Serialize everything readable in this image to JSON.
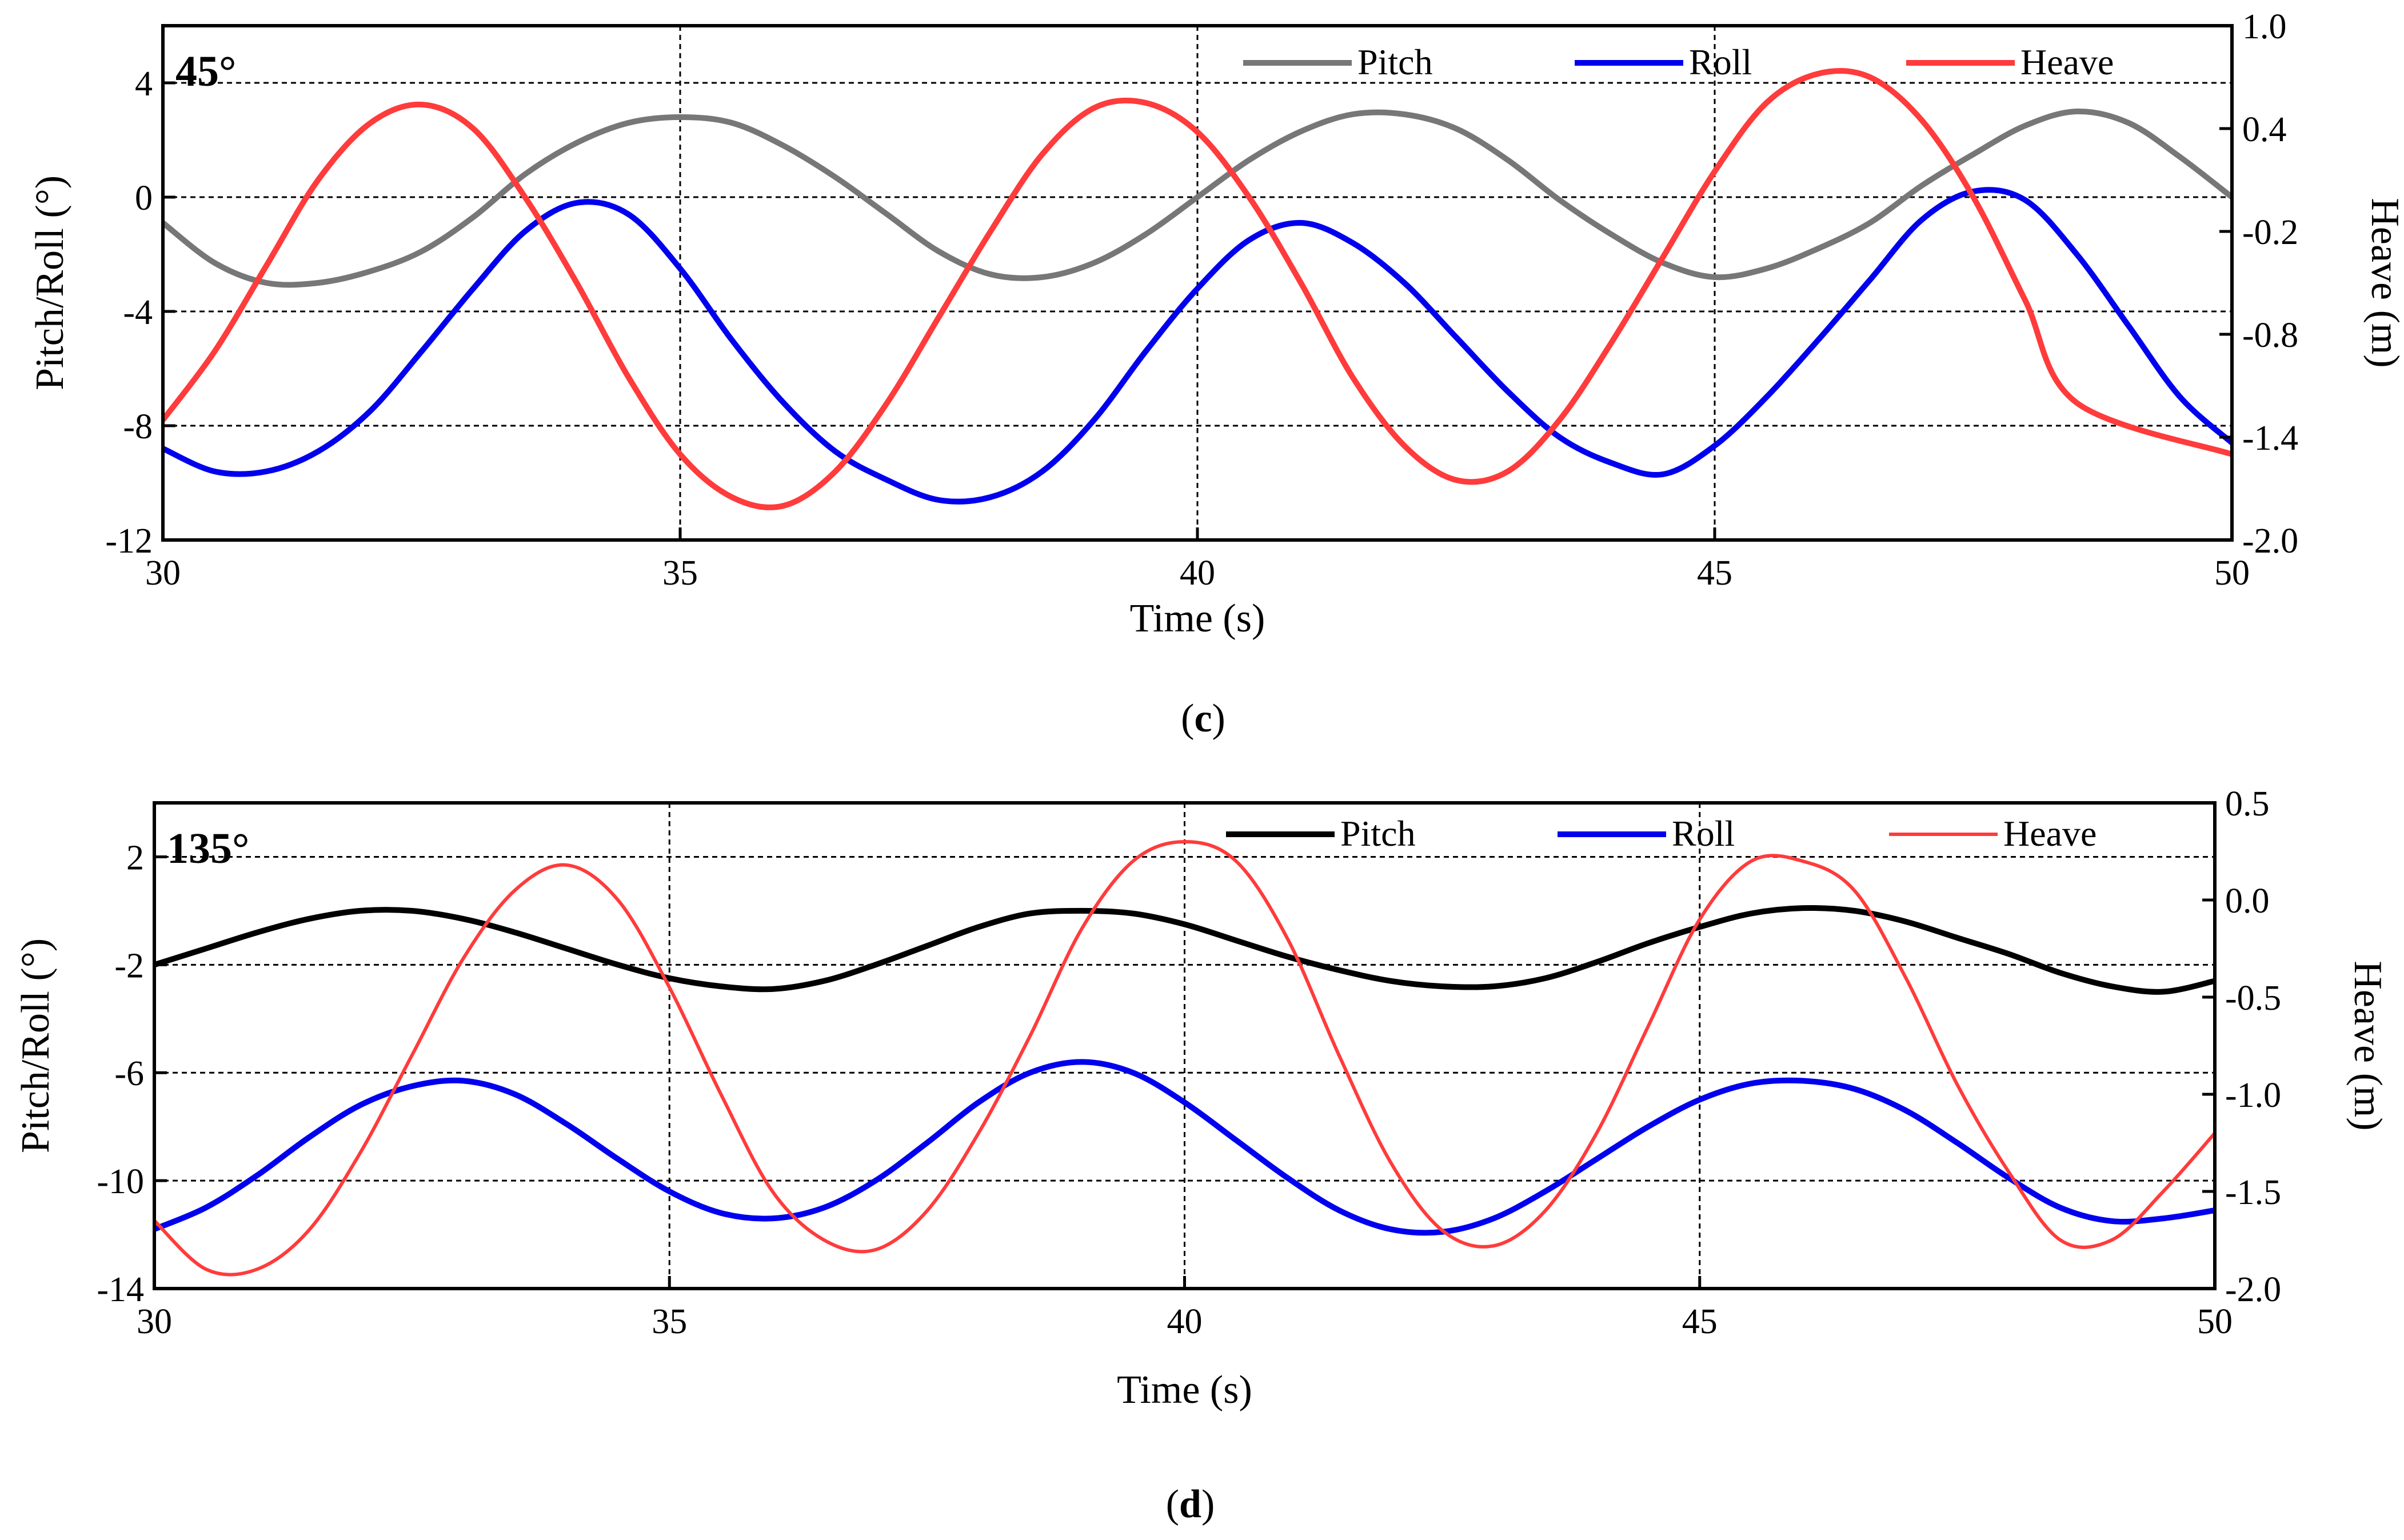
{
  "chart_data": [
    {
      "type": "line",
      "panel_title": "45°",
      "caption_letter": "c",
      "xlabel": "Time (s)",
      "ylabel_left": "Pitch/Roll (°)",
      "ylabel_right": "Heave (m)",
      "xlim": [
        30,
        50
      ],
      "xticks": [
        30,
        35,
        40,
        45,
        50
      ],
      "ylim_left": [
        -12,
        6
      ],
      "yticks_left": [
        -12,
        -8,
        -4,
        0,
        4
      ],
      "ylim_right": [
        -2.0,
        1.0
      ],
      "yticks_right": [
        "-2.0",
        "-1.4",
        "-0.8",
        "-0.2",
        "0.4",
        "1.0"
      ],
      "legend_position": "top-right",
      "series": [
        {
          "name": "Pitch",
          "axis": "left",
          "color": "#777777",
          "width": 10,
          "x": [
            30.0,
            30.5,
            31.0,
            31.5,
            32.0,
            32.5,
            33.0,
            33.5,
            34.0,
            34.5,
            35.0,
            35.5,
            36.0,
            36.5,
            37.0,
            37.5,
            38.0,
            38.5,
            39.0,
            39.5,
            40.0,
            40.5,
            41.0,
            41.5,
            42.0,
            42.5,
            43.0,
            43.5,
            44.0,
            44.5,
            45.0,
            45.5,
            46.0,
            46.5,
            47.0,
            47.5,
            48.0,
            48.5,
            49.0,
            49.5,
            50.0
          ],
          "y": [
            -0.9,
            -2.3,
            -3.0,
            -3.0,
            -2.6,
            -1.9,
            -0.7,
            0.8,
            1.9,
            2.6,
            2.8,
            2.6,
            1.8,
            0.7,
            -0.6,
            -1.9,
            -2.7,
            -2.8,
            -2.3,
            -1.3,
            0.0,
            1.3,
            2.3,
            2.9,
            2.9,
            2.4,
            1.3,
            -0.1,
            -1.3,
            -2.3,
            -2.8,
            -2.5,
            -1.8,
            -0.9,
            0.4,
            1.5,
            2.5,
            3.0,
            2.6,
            1.4,
            0.0
          ]
        },
        {
          "name": "Roll",
          "axis": "left",
          "color": "#0000ee",
          "width": 10,
          "x": [
            30.0,
            30.5,
            31.0,
            31.5,
            32.0,
            32.5,
            33.0,
            33.5,
            34.0,
            34.5,
            35.0,
            35.5,
            36.0,
            36.5,
            37.0,
            37.5,
            38.0,
            38.5,
            39.0,
            39.5,
            40.0,
            40.5,
            41.0,
            41.5,
            42.0,
            42.5,
            43.0,
            43.5,
            44.0,
            44.5,
            45.0,
            45.5,
            46.0,
            46.5,
            47.0,
            47.5,
            48.0,
            48.5,
            49.0,
            49.5,
            50.0
          ],
          "y": [
            -8.8,
            -9.6,
            -9.6,
            -8.9,
            -7.5,
            -5.4,
            -3.2,
            -1.2,
            -0.2,
            -0.6,
            -2.5,
            -5.0,
            -7.2,
            -8.9,
            -9.9,
            -10.6,
            -10.5,
            -9.6,
            -7.8,
            -5.4,
            -3.2,
            -1.5,
            -0.9,
            -1.6,
            -3.0,
            -4.9,
            -6.8,
            -8.4,
            -9.3,
            -9.7,
            -8.7,
            -7.0,
            -5.0,
            -2.9,
            -0.8,
            0.2,
            -0.1,
            -2.0,
            -4.5,
            -7.0,
            -8.6
          ]
        },
        {
          "name": "Heave",
          "axis": "right",
          "color": "#ff3b3b",
          "width": 10,
          "x": [
            30.0,
            30.5,
            31.0,
            31.5,
            32.0,
            32.5,
            33.0,
            33.5,
            34.0,
            34.5,
            35.0,
            35.5,
            36.0,
            36.5,
            37.0,
            37.5,
            38.0,
            38.5,
            39.0,
            39.5,
            40.0,
            40.5,
            41.0,
            41.5,
            42.0,
            42.5,
            43.0,
            43.5,
            44.0,
            44.5,
            45.0,
            45.5,
            46.0,
            46.5,
            47.0,
            47.5,
            48.0,
            48.5,
            50.0
          ],
          "y": [
            -1.3,
            -0.9,
            -0.4,
            0.1,
            0.43,
            0.54,
            0.4,
            0.0,
            -0.5,
            -1.05,
            -1.5,
            -1.75,
            -1.8,
            -1.6,
            -1.2,
            -0.7,
            -0.2,
            0.25,
            0.52,
            0.55,
            0.38,
            0.0,
            -0.5,
            -1.05,
            -1.45,
            -1.65,
            -1.6,
            -1.3,
            -0.85,
            -0.35,
            0.15,
            0.55,
            0.72,
            0.7,
            0.45,
            0.0,
            -0.6,
            -1.2,
            -1.5
          ]
        }
      ]
    },
    {
      "type": "line",
      "panel_title": "135°",
      "caption_letter": "d",
      "xlabel": "Time (s)",
      "ylabel_left": "Pitch/Roll (°)",
      "ylabel_right": "Heave (m)",
      "xlim": [
        30,
        50
      ],
      "xticks": [
        30,
        35,
        40,
        45,
        50
      ],
      "ylim_left": [
        -14,
        4
      ],
      "yticks_left": [
        -14,
        -10,
        -6,
        -2,
        2
      ],
      "ylim_right": [
        -2.0,
        0.5
      ],
      "yticks_right": [
        "-2.0",
        "-1.5",
        "-1.0",
        "-0.5",
        "0.0",
        "0.5"
      ],
      "legend_position": "top-right",
      "series": [
        {
          "name": "Pitch",
          "axis": "left",
          "color": "#000000",
          "width": 10,
          "x": [
            30.0,
            30.5,
            31.0,
            31.5,
            32.0,
            32.5,
            33.0,
            33.5,
            34.0,
            34.5,
            35.0,
            35.5,
            36.0,
            36.5,
            37.0,
            37.5,
            38.0,
            38.5,
            39.0,
            39.5,
            40.0,
            40.5,
            41.0,
            41.5,
            42.0,
            42.5,
            43.0,
            43.5,
            44.0,
            44.5,
            45.0,
            45.5,
            46.0,
            46.5,
            47.0,
            47.5,
            48.0,
            48.5,
            49.0,
            49.5,
            50.0
          ],
          "y": [
            -2.0,
            -1.4,
            -0.8,
            -0.3,
            0.0,
            0.0,
            -0.3,
            -0.8,
            -1.4,
            -2.0,
            -2.5,
            -2.8,
            -2.9,
            -2.6,
            -2.0,
            -1.3,
            -0.6,
            -0.1,
            0.0,
            -0.1,
            -0.5,
            -1.1,
            -1.7,
            -2.2,
            -2.6,
            -2.8,
            -2.8,
            -2.5,
            -1.9,
            -1.2,
            -0.6,
            -0.1,
            0.1,
            0.0,
            -0.4,
            -1.0,
            -1.6,
            -2.3,
            -2.8,
            -3.0,
            -2.6
          ]
        },
        {
          "name": "Roll",
          "axis": "left",
          "color": "#0000ee",
          "width": 10,
          "x": [
            30.0,
            30.5,
            31.0,
            31.5,
            32.0,
            32.5,
            33.0,
            33.5,
            34.0,
            34.5,
            35.0,
            35.5,
            36.0,
            36.5,
            37.0,
            37.5,
            38.0,
            38.5,
            39.0,
            39.5,
            40.0,
            40.5,
            41.0,
            41.5,
            42.0,
            42.5,
            43.0,
            43.5,
            44.0,
            44.5,
            45.0,
            45.5,
            46.0,
            46.5,
            47.0,
            47.5,
            48.0,
            48.5,
            49.0,
            49.5,
            50.0
          ],
          "y": [
            -11.8,
            -11.0,
            -9.8,
            -8.4,
            -7.2,
            -6.5,
            -6.3,
            -6.8,
            -7.9,
            -9.2,
            -10.4,
            -11.2,
            -11.4,
            -11.0,
            -10.0,
            -8.6,
            -7.1,
            -6.0,
            -5.6,
            -6.0,
            -7.1,
            -8.5,
            -9.9,
            -11.1,
            -11.8,
            -11.9,
            -11.4,
            -10.4,
            -9.2,
            -8.0,
            -7.0,
            -6.4,
            -6.3,
            -6.6,
            -7.4,
            -8.6,
            -9.9,
            -11.0,
            -11.5,
            -11.4,
            -11.1
          ]
        },
        {
          "name": "Heave",
          "axis": "right",
          "color": "#ff3b3b",
          "width": 6,
          "x": [
            30.0,
            30.5,
            31.0,
            31.5,
            32.0,
            32.5,
            33.0,
            33.5,
            34.0,
            34.5,
            35.0,
            35.5,
            36.0,
            36.5,
            37.0,
            37.5,
            38.0,
            38.5,
            39.0,
            39.5,
            40.0,
            40.5,
            41.0,
            41.5,
            42.0,
            42.5,
            43.0,
            43.5,
            44.0,
            44.5,
            45.0,
            45.5,
            46.0,
            46.5,
            47.0,
            47.5,
            48.0,
            48.5,
            49.0,
            49.5,
            50.0
          ],
          "y": [
            -1.65,
            -1.9,
            -1.9,
            -1.7,
            -1.3,
            -0.8,
            -0.3,
            0.05,
            0.18,
            0.0,
            -0.45,
            -1.0,
            -1.5,
            -1.75,
            -1.8,
            -1.6,
            -1.2,
            -0.7,
            -0.15,
            0.2,
            0.3,
            0.2,
            -0.2,
            -0.8,
            -1.35,
            -1.7,
            -1.78,
            -1.6,
            -1.2,
            -0.65,
            -0.1,
            0.2,
            0.2,
            0.05,
            -0.4,
            -0.95,
            -1.4,
            -1.75,
            -1.75,
            -1.5,
            -1.2
          ]
        }
      ]
    }
  ]
}
